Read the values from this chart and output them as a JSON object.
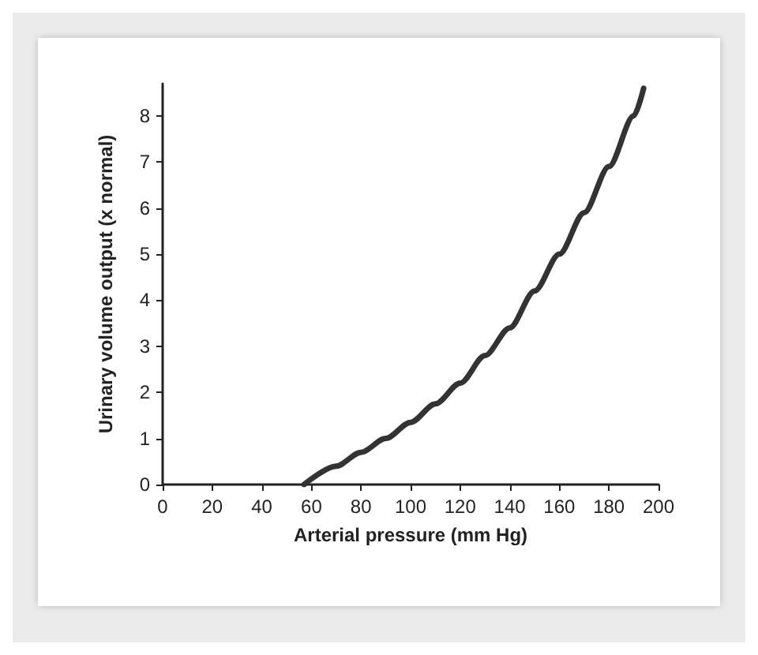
{
  "chart_data": {
    "type": "line",
    "xlabel": "Arterial pressure (mm Hg)",
    "ylabel": "Urinary volume output (x normal)",
    "x": [
      57,
      70,
      80,
      90,
      100,
      110,
      120,
      130,
      140,
      150,
      160,
      170,
      180,
      190,
      194
    ],
    "series": [
      {
        "color": "#333333",
        "values": [
          0,
          0.4,
          0.7,
          1.0,
          1.35,
          1.75,
          2.2,
          2.8,
          3.4,
          4.2,
          5.0,
          5.9,
          6.9,
          8.0,
          8.6
        ]
      }
    ],
    "xlim": [
      0,
      200
    ],
    "xticks": [
      0,
      20,
      40,
      60,
      80,
      100,
      120,
      140,
      160,
      180,
      200
    ],
    "ylim": [
      0,
      8.7
    ],
    "yticks": [
      0,
      1,
      2,
      3,
      4,
      5,
      6,
      7,
      8
    ],
    "grid": false,
    "marker": "none",
    "line_style": "solid"
  }
}
